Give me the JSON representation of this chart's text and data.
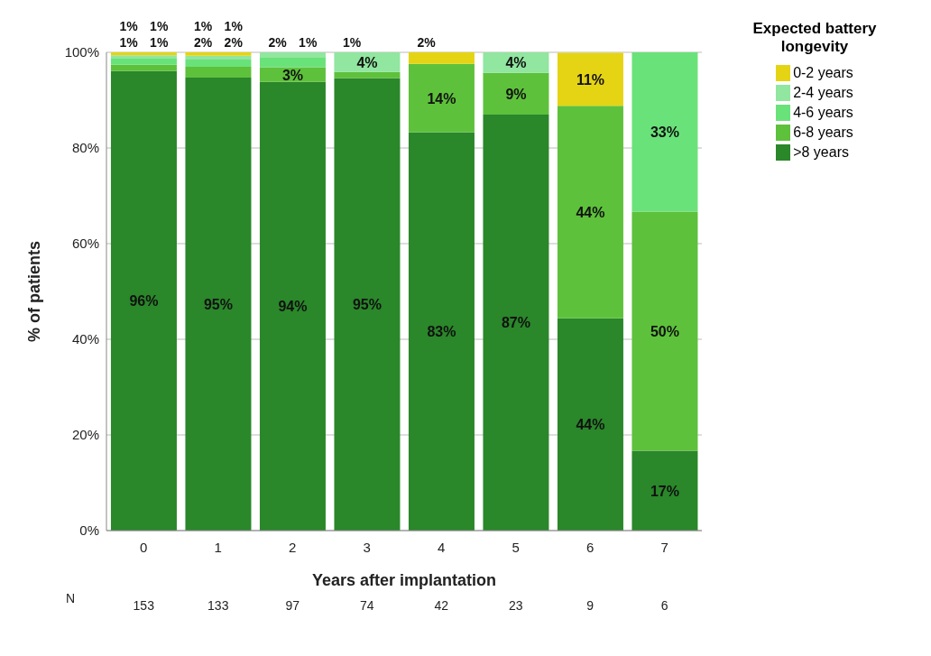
{
  "chart_data": {
    "type": "bar",
    "stacked": true,
    "xlabel": "Years after implantation",
    "ylabel": "% of patients",
    "legend_title": "Expected battery longevity",
    "categories": [
      "0",
      "1",
      "2",
      "3",
      "4",
      "5",
      "6",
      "7"
    ],
    "series": [
      {
        "name": ">8 years",
        "color": "#2a872a",
        "values": [
          96.1,
          94.7,
          93.8,
          94.6,
          83.3,
          87.0,
          44.4,
          16.7
        ],
        "value_labels": [
          "96%",
          "95%",
          "94%",
          "95%",
          "83%",
          "87%",
          "44%",
          "17%"
        ]
      },
      {
        "name": "6-8 years",
        "color": "#5ec13b",
        "values": [
          1.3,
          2.3,
          3.1,
          1.3,
          14.3,
          8.7,
          44.4,
          50.0
        ],
        "value_labels": [
          "1%",
          "2%",
          "3%",
          "1%",
          "14%",
          "9%",
          "44%",
          "50%"
        ]
      },
      {
        "name": "4-6 years",
        "color": "#6ae27a",
        "values": [
          1.3,
          1.5,
          2.1,
          0,
          0,
          0,
          0,
          33.3
        ],
        "value_labels": [
          "1%",
          "2%",
          "2%",
          null,
          null,
          null,
          null,
          "33%"
        ]
      },
      {
        "name": "2-4 years",
        "color": "#91e6a0",
        "values": [
          0.7,
          0.8,
          1.0,
          4.1,
          0,
          4.3,
          0,
          0
        ],
        "value_labels": [
          "1%",
          "1%",
          "1%",
          "4%",
          null,
          "4%",
          null,
          null
        ]
      },
      {
        "name": "0-2 years",
        "color": "#e5d414",
        "values": [
          0.6,
          0.7,
          0,
          0,
          2.4,
          0,
          11.1,
          0
        ],
        "value_labels": [
          "1%",
          "1%",
          null,
          null,
          "2%",
          null,
          "11%",
          null
        ]
      }
    ],
    "ylim": [
      0,
      100
    ],
    "yticks": [
      {
        "value": 0,
        "label": "0%"
      },
      {
        "value": 20,
        "label": "20%"
      },
      {
        "value": 40,
        "label": "40%"
      },
      {
        "value": 60,
        "label": "60%"
      },
      {
        "value": 80,
        "label": "80%"
      },
      {
        "value": 100,
        "label": "100%"
      }
    ],
    "grid": "y",
    "legend": "top right",
    "annotations": [
      "N",
      "153",
      "133",
      "97",
      "74",
      "42",
      "23",
      "9",
      "6"
    ]
  }
}
